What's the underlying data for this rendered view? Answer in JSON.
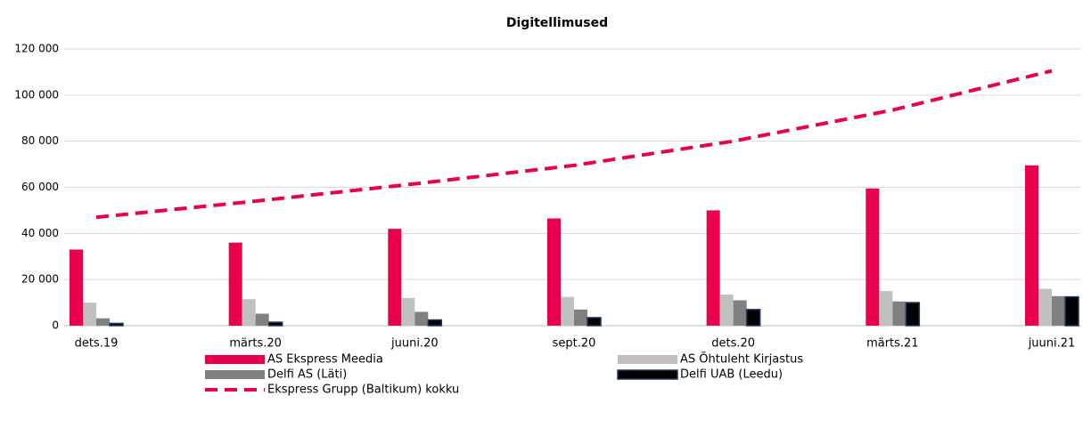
{
  "chart_data": {
    "type": "bar",
    "title": "Digitellimused",
    "categories": [
      "dets.19",
      "märts.20",
      "juuni.20",
      "sept.20",
      "dets.20",
      "märts.21",
      "juuni.21"
    ],
    "series": [
      {
        "name": "AS Ekspress Meedia",
        "color": "#e8004c",
        "values": [
          33000,
          36000,
          42000,
          46500,
          50000,
          59500,
          69500
        ]
      },
      {
        "name": "AS Õhtuleht Kirjastus",
        "color": "#c0c0c0",
        "values": [
          10000,
          11500,
          12000,
          12500,
          13500,
          15000,
          16000
        ]
      },
      {
        "name": "Delfi AS (Läti)",
        "color": "#808080",
        "values": [
          3200,
          5200,
          6000,
          7000,
          11000,
          10500,
          12800
        ]
      },
      {
        "name": "Delfi UAB (Leedu)",
        "color": "#000000",
        "values": [
          1000,
          1500,
          2500,
          3500,
          7000,
          10000,
          12500
        ]
      },
      {
        "name": "Ekspress Grupp (Baltikum) kokku",
        "color": "#e8004c",
        "type": "line",
        "dashed": true,
        "values": [
          47000,
          54000,
          61500,
          69500,
          80000,
          93500,
          110500
        ]
      }
    ],
    "ylim": [
      0,
      120000
    ],
    "yticks": [
      0,
      {
        "value": 20000,
        "label": "20 000"
      },
      {
        "value": 40000,
        "label": "40 000"
      },
      {
        "value": 60000,
        "label": "60 000"
      },
      {
        "value": 80000,
        "label": "80 000"
      },
      {
        "value": 100000,
        "label": "100 000"
      },
      {
        "value": 120000,
        "label": "120 000"
      }
    ],
    "grid": true,
    "legend": "bottom"
  }
}
